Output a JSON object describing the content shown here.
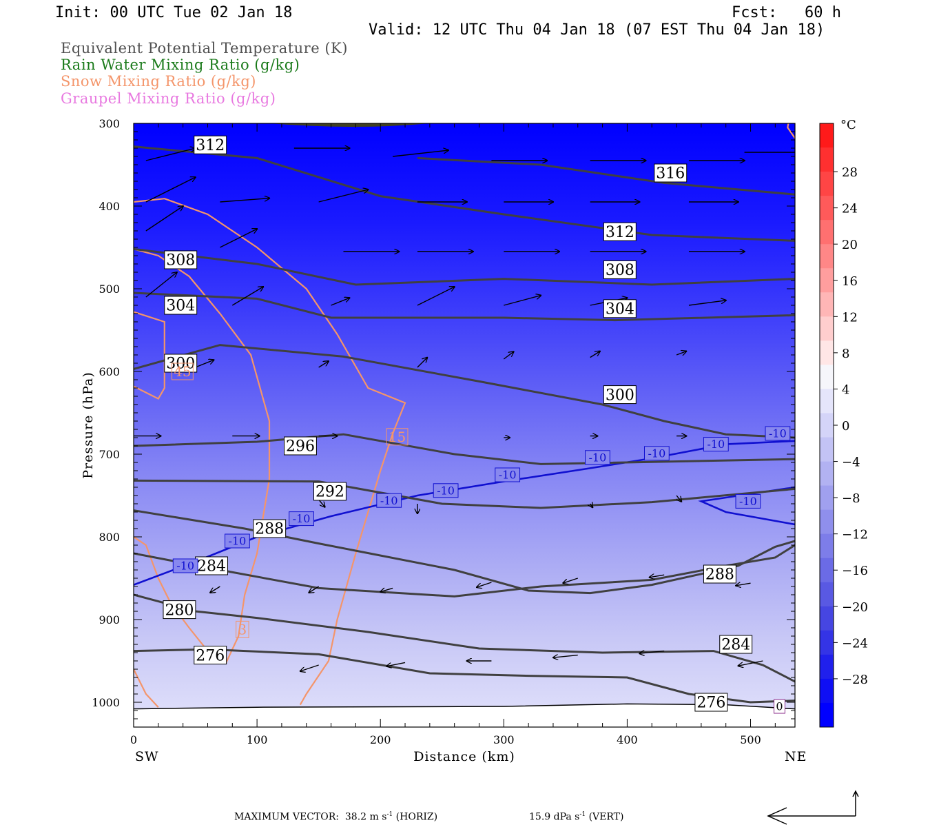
{
  "header": {
    "init": "Init: 00 UTC Tue 02 Jan 18",
    "fcst": "Fcst:   60 h",
    "valid": "Valid: 12 UTC Thu 04 Jan 18 (07 EST Thu 04 Jan 18)"
  },
  "legend": [
    {
      "label": "Equivalent Potential Temperature (K)",
      "color": "#505050"
    },
    {
      "label": "Rain Water Mixing Ratio (g/kg)",
      "color": "#1a7a1a"
    },
    {
      "label": "Snow Mixing Ratio (g/kg)",
      "color": "#f4956a"
    },
    {
      "label": "Graupel Mixing Ratio (g/kg)",
      "color": "#e879e0"
    }
  ],
  "chart_data": {
    "type": "cross-section",
    "xlabel": "Distance (km)",
    "ylabel": "Pressure (hPa)",
    "x_left_label": "SW",
    "x_right_label": "NE",
    "xlim": [
      0,
      536
    ],
    "ylim": [
      1030,
      300
    ],
    "x_ticks": [
      "0",
      "100",
      "200",
      "300",
      "400",
      "500"
    ],
    "y_ticks": [
      "300",
      "400",
      "500",
      "600",
      "700",
      "800",
      "900",
      "1000"
    ],
    "surface_pressure": [
      [
        0,
        1008
      ],
      [
        100,
        1006
      ],
      [
        300,
        1005
      ],
      [
        400,
        1002
      ],
      [
        480,
        1003
      ],
      [
        536,
        1008
      ]
    ],
    "shading_stops": [
      {
        "p": 300,
        "color": "#0000ff"
      },
      {
        "p": 420,
        "color": "#1a1aff"
      },
      {
        "p": 520,
        "color": "#3a3afb"
      },
      {
        "p": 620,
        "color": "#5f5ff6"
      },
      {
        "p": 720,
        "color": "#8585f4"
      },
      {
        "p": 820,
        "color": "#a7a7f4"
      },
      {
        "p": 920,
        "color": "#c7c7f6"
      },
      {
        "p": 1030,
        "color": "#e2e2fb"
      }
    ],
    "theta_e": [
      {
        "value": "276",
        "points": [
          [
            0,
            938
          ],
          [
            60,
            936
          ],
          [
            150,
            942
          ],
          [
            240,
            965
          ],
          [
            320,
            968
          ],
          [
            400,
            970
          ],
          [
            450,
            990
          ],
          [
            500,
            1000
          ],
          [
            536,
            998
          ]
        ],
        "label_at": [
          49,
          943
        ],
        "label2": "276",
        "label2_at": [
          455,
          1000
        ]
      },
      {
        "value": "280",
        "points": [
          [
            0,
            870
          ],
          [
            50,
            890
          ],
          [
            100,
            898
          ],
          [
            190,
            915
          ],
          [
            280,
            935
          ],
          [
            380,
            940
          ],
          [
            470,
            938
          ],
          [
            510,
            955
          ],
          [
            536,
            975
          ]
        ],
        "label_at": [
          24,
          888
        ],
        "label2": "284",
        "label2_at": [
          475,
          930
        ]
      },
      {
        "value": "284",
        "points": [
          [
            0,
            820
          ],
          [
            70,
            840
          ],
          [
            150,
            862
          ],
          [
            260,
            872
          ],
          [
            330,
            860
          ],
          [
            420,
            852
          ],
          [
            480,
            835
          ],
          [
            520,
            825
          ],
          [
            536,
            810
          ]
        ],
        "label_at": [
          50,
          835
        ]
      },
      {
        "value": "288",
        "points": [
          [
            0,
            768
          ],
          [
            90,
            790
          ],
          [
            150,
            808
          ],
          [
            260,
            840
          ],
          [
            320,
            865
          ],
          [
            370,
            868
          ],
          [
            420,
            858
          ],
          [
            490,
            835
          ],
          [
            520,
            812
          ],
          [
            536,
            805
          ]
        ],
        "label_at": [
          97,
          790
        ],
        "label2": "288",
        "label2_at": [
          462,
          845
        ]
      },
      {
        "value": "292",
        "points": [
          [
            0,
            732
          ],
          [
            150,
            733
          ],
          [
            250,
            760
          ],
          [
            330,
            765
          ],
          [
            420,
            758
          ],
          [
            536,
            742
          ]
        ],
        "label_at": [
          146,
          745
        ]
      },
      {
        "value": "296",
        "points": [
          [
            0,
            690
          ],
          [
            100,
            685
          ],
          [
            170,
            676
          ],
          [
            260,
            700
          ],
          [
            330,
            712
          ],
          [
            536,
            706
          ]
        ],
        "label_at": [
          122,
          690
        ]
      },
      {
        "value": "300",
        "points": [
          [
            0,
            597
          ],
          [
            70,
            568
          ],
          [
            170,
            582
          ],
          [
            280,
            612
          ],
          [
            380,
            640
          ],
          [
            430,
            660
          ],
          [
            480,
            676
          ],
          [
            536,
            680
          ]
        ],
        "label_at": [
          25,
          590
        ],
        "label2": "300",
        "label2_at": [
          381,
          628
        ]
      },
      {
        "value": "304",
        "points": [
          [
            0,
            505
          ],
          [
            100,
            512
          ],
          [
            160,
            535
          ],
          [
            300,
            535
          ],
          [
            390,
            538
          ],
          [
            536,
            532
          ]
        ],
        "label_at": [
          25,
          520
        ],
        "label2": "304",
        "label2_at": [
          381,
          524
        ]
      },
      {
        "value": "308",
        "points": [
          [
            0,
            452
          ],
          [
            100,
            470
          ],
          [
            180,
            495
          ],
          [
            300,
            488
          ],
          [
            420,
            495
          ],
          [
            536,
            488
          ]
        ],
        "label_at": [
          25,
          465
        ],
        "label2": "308",
        "label2_at": [
          381,
          477
        ]
      },
      {
        "value": "312",
        "points": [
          [
            0,
            328
          ],
          [
            100,
            342
          ],
          [
            200,
            388
          ],
          [
            300,
            410
          ],
          [
            420,
            435
          ],
          [
            536,
            442
          ]
        ],
        "label_at": [
          49,
          326
        ],
        "label2": "312",
        "label2_at": [
          381,
          431
        ]
      },
      {
        "value": "316",
        "points": [
          [
            230,
            342
          ],
          [
            330,
            350
          ],
          [
            430,
            372
          ],
          [
            536,
            386
          ]
        ],
        "label_at": [
          422,
          360
        ]
      }
    ],
    "isotherm_minus10": {
      "value": "-10",
      "points": [
        [
          0,
          858
        ],
        [
          50,
          830
        ],
        [
          100,
          800
        ],
        [
          160,
          775
        ],
        [
          230,
          750
        ],
        [
          300,
          733
        ],
        [
          370,
          717
        ],
        [
          420,
          705
        ],
        [
          480,
          688
        ],
        [
          536,
          684
        ]
      ],
      "label_positions": [
        [
          32,
          835
        ],
        [
          74,
          805
        ],
        [
          126,
          778
        ],
        [
          197,
          756
        ],
        [
          243,
          744
        ],
        [
          293,
          725
        ],
        [
          366,
          704
        ],
        [
          414,
          699
        ],
        [
          462,
          688
        ],
        [
          512,
          675
        ]
      ],
      "branch": [
        [
          536,
          740
        ],
        [
          500,
          748
        ],
        [
          460,
          757
        ],
        [
          480,
          770
        ],
        [
          536,
          785
        ]
      ],
      "branch_label_at": [
        488,
        757
      ]
    },
    "snow_contours": [
      {
        "value": "45",
        "points": [
          [
            0,
            528
          ],
          [
            25,
            540
          ],
          [
            25,
            600
          ],
          [
            25,
            620
          ],
          [
            20,
            633
          ],
          [
            0,
            618
          ]
        ],
        "label_at": [
          31,
          600
        ]
      },
      {
        "value": "15",
        "points": [
          [
            0,
            395
          ],
          [
            25,
            391
          ],
          [
            60,
            410
          ],
          [
            100,
            450
          ],
          [
            140,
            500
          ],
          [
            165,
            555
          ],
          [
            190,
            620
          ],
          [
            220,
            638
          ],
          [
            210,
            675
          ],
          [
            200,
            720
          ],
          [
            180,
            820
          ],
          [
            165,
            900
          ],
          [
            158,
            950
          ],
          [
            140,
            990
          ],
          [
            135,
            1003
          ]
        ],
        "label_at": [
          205,
          679
        ]
      },
      {
        "value": "3",
        "points": [
          [
            0,
            452
          ],
          [
            20,
            460
          ],
          [
            45,
            485
          ],
          [
            70,
            530
          ],
          [
            95,
            580
          ],
          [
            110,
            660
          ],
          [
            110,
            730
          ],
          [
            100,
            820
          ],
          [
            90,
            870
          ],
          [
            85,
            920
          ],
          [
            75,
            952
          ],
          [
            60,
            938
          ],
          [
            45,
            910
          ],
          [
            30,
            880
          ],
          [
            20,
            850
          ],
          [
            10,
            810
          ],
          [
            0,
            800
          ]
        ],
        "label_at": [
          83,
          912
        ]
      },
      {
        "value": "",
        "points": [
          [
            0,
            960
          ],
          [
            10,
            990
          ],
          [
            20,
            1006
          ]
        ]
      },
      {
        "value": "",
        "points": [
          [
            536,
            318
          ],
          [
            530,
            305
          ],
          [
            532,
            290
          ],
          [
            536,
            278
          ]
        ]
      }
    ],
    "graupel_label": {
      "value": "0",
      "label_at": [
        519,
        1005
      ]
    },
    "wind_vectors": [
      [
        10,
        345,
        40,
        10
      ],
      [
        130,
        330,
        45,
        0
      ],
      [
        210,
        340,
        45,
        5
      ],
      [
        290,
        345,
        45,
        0
      ],
      [
        370,
        345,
        45,
        0
      ],
      [
        450,
        345,
        45,
        0
      ],
      [
        495,
        335,
        45,
        0
      ],
      [
        10,
        395,
        40,
        20
      ],
      [
        70,
        395,
        40,
        3
      ],
      [
        150,
        395,
        40,
        10
      ],
      [
        230,
        395,
        40,
        0
      ],
      [
        300,
        395,
        40,
        0
      ],
      [
        370,
        395,
        40,
        0
      ],
      [
        450,
        395,
        40,
        0
      ],
      [
        10,
        430,
        30,
        20
      ],
      [
        70,
        450,
        30,
        15
      ],
      [
        170,
        455,
        45,
        0
      ],
      [
        230,
        455,
        45,
        0
      ],
      [
        300,
        455,
        45,
        0
      ],
      [
        370,
        455,
        45,
        0
      ],
      [
        450,
        455,
        45,
        0
      ],
      [
        10,
        510,
        25,
        20
      ],
      [
        80,
        520,
        25,
        15
      ],
      [
        160,
        520,
        15,
        6
      ],
      [
        230,
        520,
        30,
        15
      ],
      [
        300,
        520,
        30,
        8
      ],
      [
        370,
        520,
        30,
        6
      ],
      [
        450,
        520,
        30,
        4
      ],
      [
        50,
        595,
        15,
        6
      ],
      [
        150,
        595,
        8,
        5
      ],
      [
        230,
        595,
        8,
        8
      ],
      [
        300,
        585,
        8,
        6
      ],
      [
        370,
        583,
        8,
        5
      ],
      [
        440,
        580,
        8,
        3
      ],
      [
        0,
        678,
        22,
        0
      ],
      [
        80,
        678,
        22,
        0
      ],
      [
        150,
        678,
        15,
        0
      ],
      [
        300,
        680,
        5,
        0
      ],
      [
        370,
        678,
        6,
        0
      ],
      [
        440,
        678,
        8,
        0
      ],
      [
        150,
        755,
        5,
        -6
      ],
      [
        230,
        760,
        0,
        -8
      ],
      [
        330,
        770,
        0,
        0
      ],
      [
        370,
        760,
        2,
        -3
      ],
      [
        440,
        750,
        4,
        -5
      ],
      [
        500,
        750,
        4,
        -4
      ],
      [
        70,
        860,
        -8,
        -5
      ],
      [
        150,
        860,
        -8,
        -5
      ],
      [
        210,
        862,
        -10,
        -3
      ],
      [
        290,
        855,
        -12,
        -4
      ],
      [
        360,
        850,
        -12,
        -4
      ],
      [
        430,
        846,
        -12,
        -2
      ],
      [
        500,
        856,
        -12,
        -2
      ],
      [
        150,
        955,
        -15,
        -5
      ],
      [
        220,
        952,
        -15,
        -3
      ],
      [
        290,
        950,
        -20,
        0
      ],
      [
        360,
        943,
        -20,
        -2
      ],
      [
        430,
        938,
        -20,
        -2
      ],
      [
        510,
        950,
        -20,
        -4
      ]
    ],
    "colorbar": {
      "unit": "°C",
      "labels": [
        "28",
        "24",
        "20",
        "16",
        "12",
        "8",
        "4",
        "0",
        "-4",
        "-8",
        "-12",
        "-16",
        "-20",
        "-24",
        "-28"
      ],
      "colors": [
        "#ff1a1a",
        "#ff3030",
        "#ff4545",
        "#ff5a5a",
        "#ff7070",
        "#ff8787",
        "#ff9e9e",
        "#ffb6b6",
        "#ffcece",
        "#ffe6e6",
        "#f6f6fb",
        "#e5e5fb",
        "#d4d4f8",
        "#c3c3f5",
        "#b2b2f2",
        "#a0a0ef",
        "#8f8fec",
        "#7d7de9",
        "#6b6be6",
        "#5959e3",
        "#4646e2",
        "#3434e6",
        "#2020ec",
        "#0f0ff4",
        "#0000ff"
      ]
    }
  },
  "footer": {
    "max_vector_prefix": "MAXIMUM VECTOR:",
    "horiz_value": "38.2 m s",
    "horiz_exp": "-1",
    "horiz_suffix": " (HORIZ)",
    "vert_value": "15.9 dPa s",
    "vert_exp": "-1",
    "vert_suffix": " (VERT)"
  }
}
